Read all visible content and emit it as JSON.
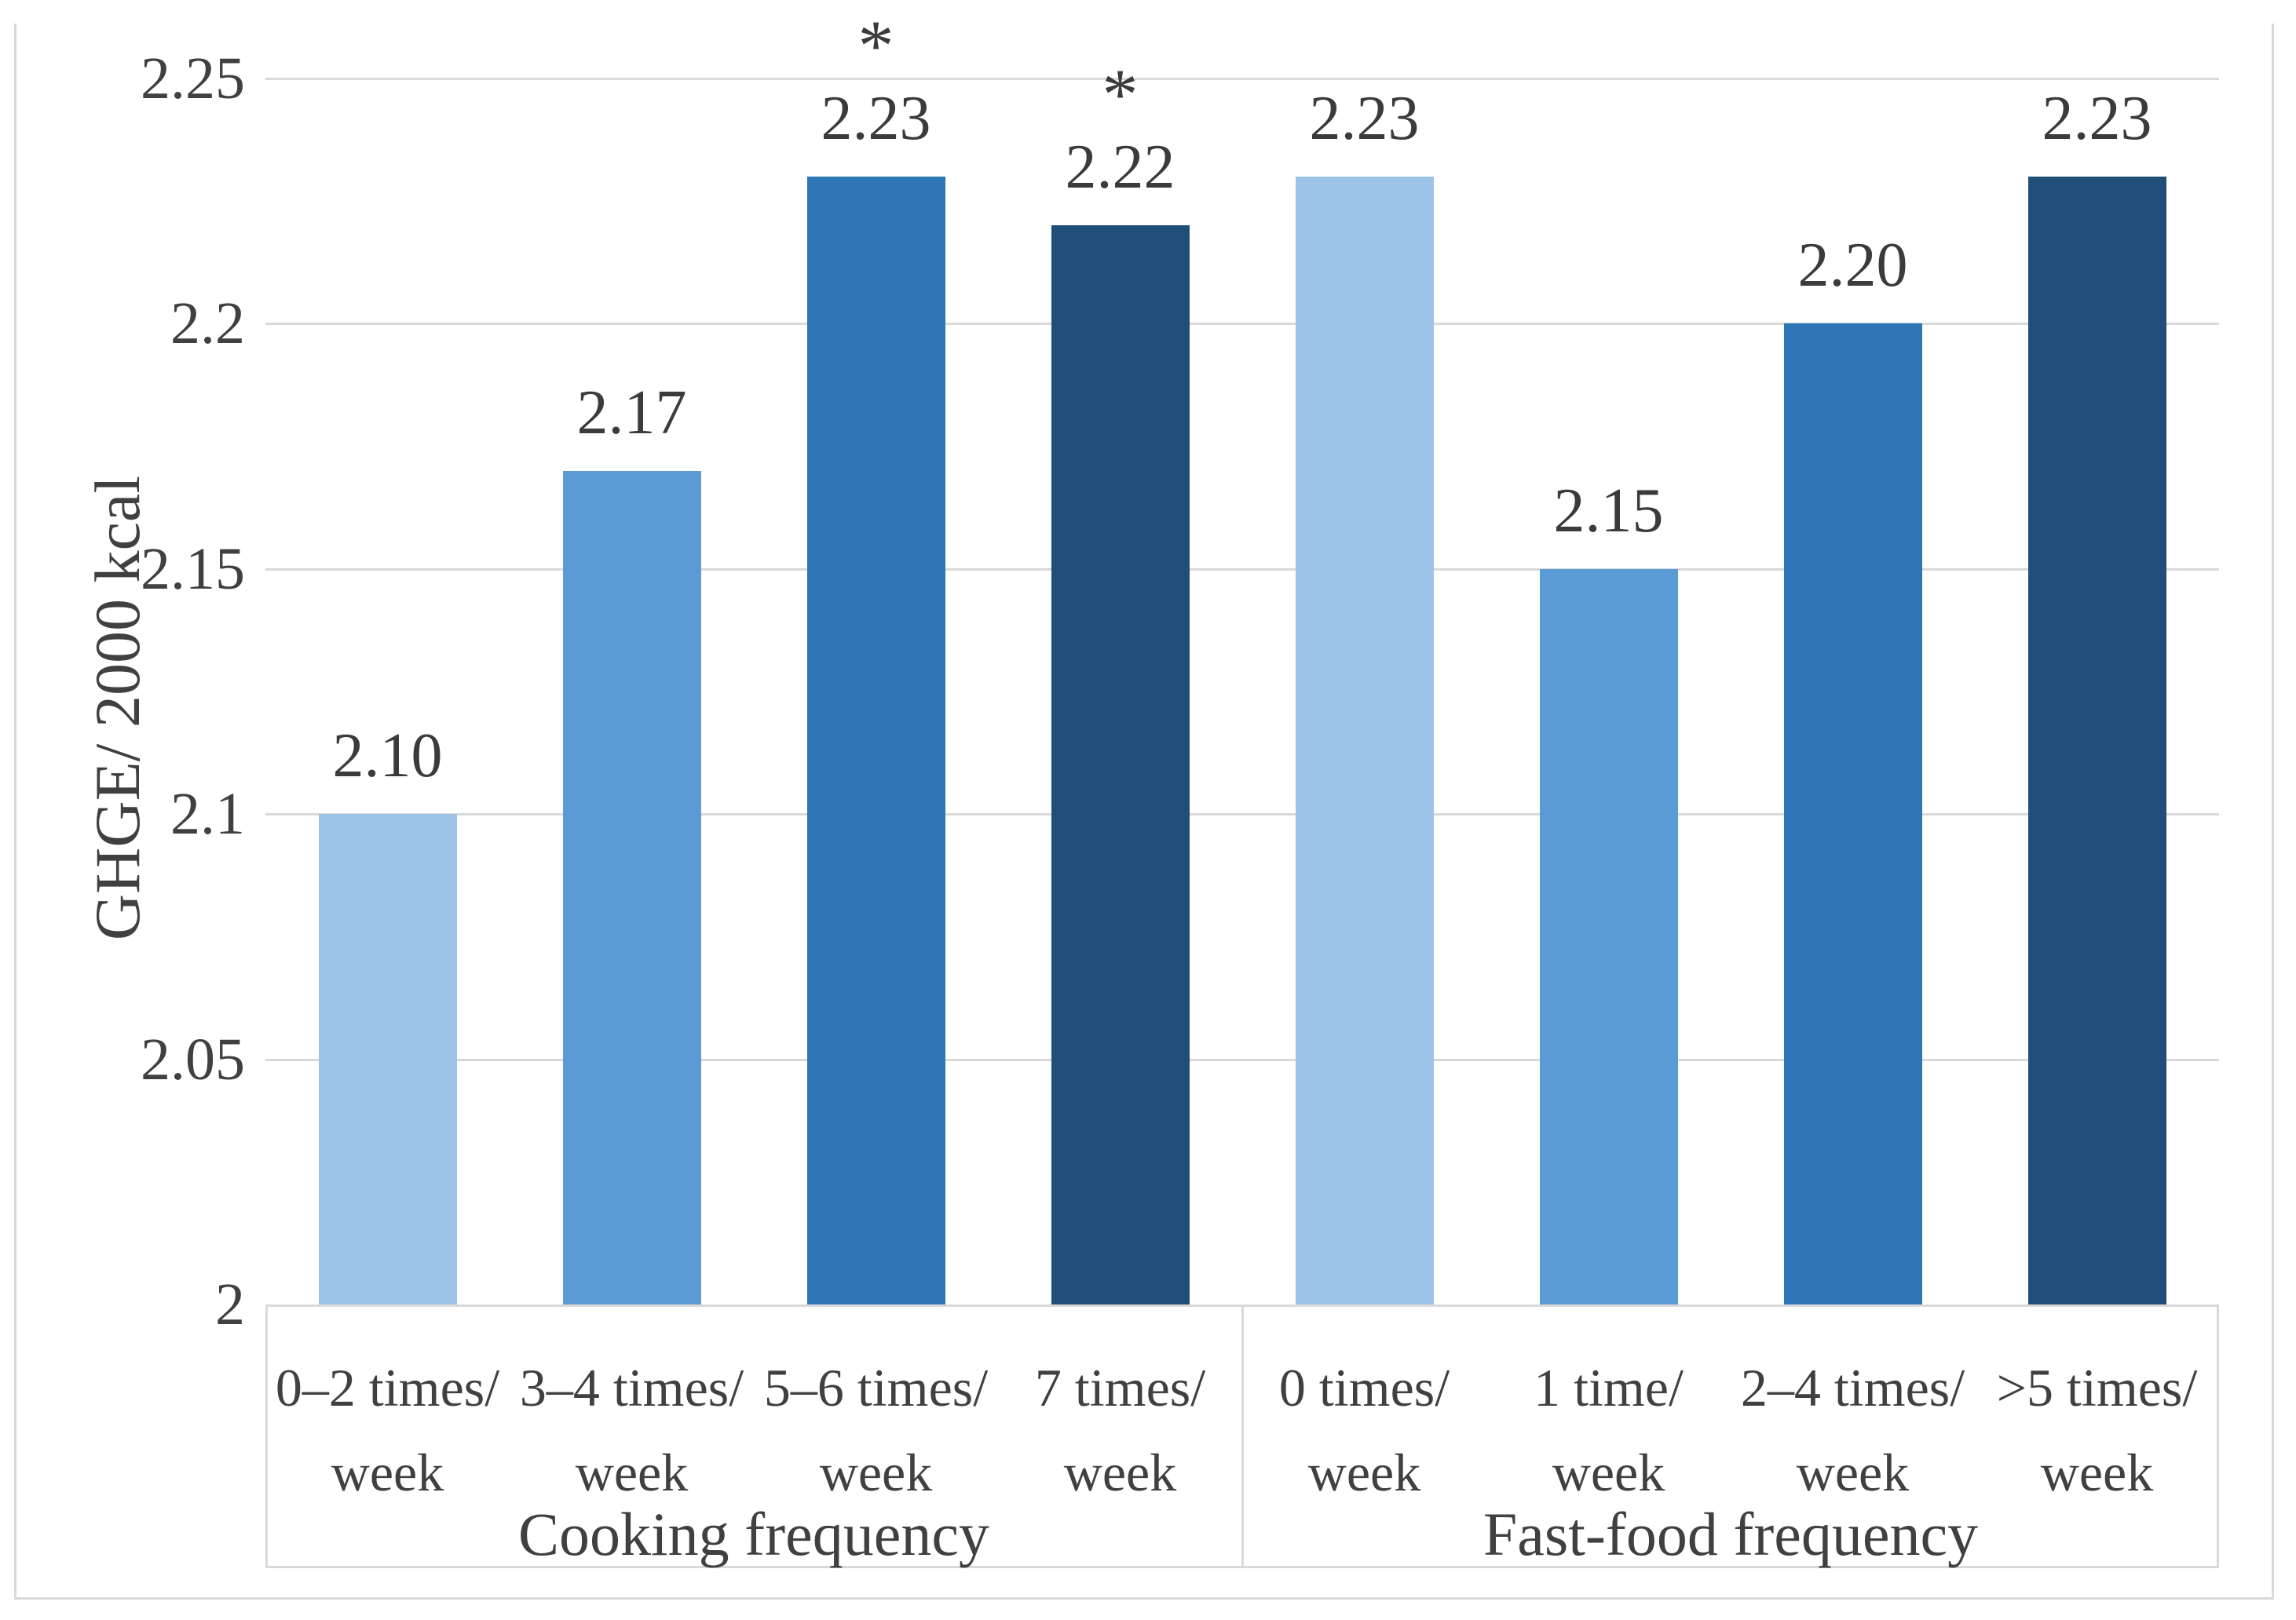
{
  "figure": {
    "border_color": "#d9d9d9",
    "gridline_color": "#d9d9d9",
    "text_color": "#404040"
  },
  "y_axis": {
    "title": "GHGE/ 2000 kcal"
  },
  "chart_data": {
    "type": "bar",
    "title": "",
    "xlabel": "",
    "ylabel": "GHGE/ 2000 kcal",
    "ylim": [
      2,
      2.25
    ],
    "grid": true,
    "yticks": [
      {
        "value": 2.25,
        "label": "2.25"
      },
      {
        "value": 2.2,
        "label": "2.2"
      },
      {
        "value": 2.15,
        "label": "2.15"
      },
      {
        "value": 2.1,
        "label": "2.1"
      },
      {
        "value": 2.05,
        "label": "2.05"
      },
      {
        "value": 2,
        "label": "2"
      }
    ],
    "groups": [
      {
        "label": "Cooking frequency",
        "bars": [
          {
            "category": "0–2 times/\nweek",
            "value": 2.1,
            "value_label": "2.10",
            "significance": "",
            "color": "#9ec3e8"
          },
          {
            "category": "3–4 times/\nweek",
            "value": 2.17,
            "value_label": "2.17",
            "significance": "",
            "color": "#5a9bd5"
          },
          {
            "category": "5–6 times/\nweek",
            "value": 2.23,
            "value_label": "2.23",
            "significance": "*",
            "color": "#2e75b6"
          },
          {
            "category": "7 times/\nweek",
            "value": 2.22,
            "value_label": "2.22",
            "significance": "*",
            "color": "#1f4e79"
          }
        ]
      },
      {
        "label": "Fast-food frequency",
        "bars": [
          {
            "category": "0 times/\nweek",
            "value": 2.23,
            "value_label": "2.23",
            "significance": "",
            "color": "#9ec3e8"
          },
          {
            "category": "1 time/\nweek",
            "value": 2.15,
            "value_label": "2.15",
            "significance": "",
            "color": "#5a9bd5"
          },
          {
            "category": "2–4 times/\nweek",
            "value": 2.2,
            "value_label": "2.20",
            "significance": "",
            "color": "#2e75b6"
          },
          {
            "category": ">5 times/\nweek",
            "value": 2.23,
            "value_label": "2.23",
            "significance": "",
            "color": "#1f4e79"
          }
        ]
      }
    ]
  }
}
